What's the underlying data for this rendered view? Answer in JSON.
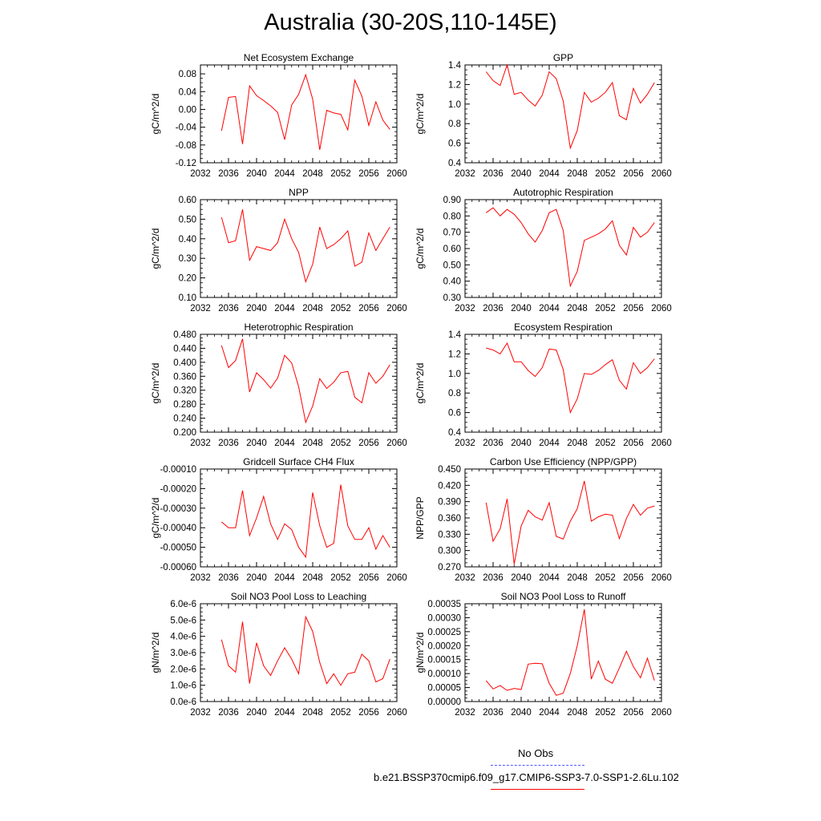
{
  "title": "Australia (30-20S,110-145E)",
  "legend": {
    "entries": [
      {
        "label": "No Obs",
        "color": "#0000ff",
        "style": "dashed"
      },
      {
        "label": "b.e21.BSSP370cmip6.f09_g17.CMIP6-SSP3-7.0-SSP1-2.6Lu.102",
        "color": "#ff0000",
        "style": "solid"
      }
    ]
  },
  "x_axis": {
    "ticks": [
      2032,
      2036,
      2040,
      2044,
      2048,
      2052,
      2056,
      2060
    ],
    "tick_labels": [
      "2032",
      "2036",
      "2040",
      "2044",
      "2048",
      "2052",
      "2056",
      "2060"
    ],
    "xlim": [
      2032,
      2060
    ],
    "years": [
      2035,
      2036,
      2037,
      2038,
      2039,
      2040,
      2041,
      2042,
      2043,
      2044,
      2045,
      2046,
      2047,
      2048,
      2049,
      2050,
      2051,
      2052,
      2053,
      2054,
      2055,
      2056,
      2057,
      2058,
      2059
    ]
  },
  "chart_data": [
    {
      "type": "line",
      "title": "Net Ecosystem Exchange",
      "ylabel": "gC/m^2/d",
      "ylim": [
        -0.12,
        0.1
      ],
      "yticks": [
        -0.12,
        -0.08,
        -0.04,
        0.0,
        0.04,
        0.08
      ],
      "ytick_labels": [
        "-0.12",
        "-0.08",
        "-0.04",
        "0.00",
        "0.04",
        "0.08"
      ],
      "series": [
        {
          "color": "#ff0000",
          "values": [
            -0.048,
            0.027,
            0.029,
            -0.078,
            0.053,
            0.031,
            0.02,
            0.008,
            -0.007,
            -0.068,
            0.01,
            0.034,
            0.078,
            0.023,
            -0.091,
            -0.002,
            -0.008,
            -0.011,
            -0.046,
            0.066,
            0.03,
            -0.036,
            0.017,
            -0.024,
            -0.045
          ]
        }
      ]
    },
    {
      "type": "line",
      "title": "GPP",
      "ylabel": "gC/m^2/d",
      "ylim": [
        0.4,
        1.4
      ],
      "yticks": [
        0.4,
        0.6,
        0.8,
        1.0,
        1.2,
        1.4
      ],
      "ytick_labels": [
        "0.4",
        "0.6",
        "0.8",
        "1.0",
        "1.2",
        "1.4"
      ],
      "series": [
        {
          "color": "#ff0000",
          "values": [
            1.33,
            1.24,
            1.19,
            1.4,
            1.1,
            1.12,
            1.04,
            0.98,
            1.09,
            1.33,
            1.26,
            1.03,
            0.55,
            0.73,
            1.12,
            1.02,
            1.06,
            1.12,
            1.22,
            0.88,
            0.84,
            1.16,
            1.01,
            1.1,
            1.22
          ]
        }
      ]
    },
    {
      "type": "line",
      "title": "NPP",
      "ylabel": "gC/m^2/d",
      "ylim": [
        0.1,
        0.6
      ],
      "yticks": [
        0.1,
        0.2,
        0.3,
        0.4,
        0.5,
        0.6
      ],
      "ytick_labels": [
        "0.10",
        "0.20",
        "0.30",
        "0.40",
        "0.50",
        "0.60"
      ],
      "series": [
        {
          "color": "#ff0000",
          "values": [
            0.51,
            0.38,
            0.39,
            0.55,
            0.29,
            0.36,
            0.35,
            0.34,
            0.38,
            0.5,
            0.4,
            0.33,
            0.18,
            0.27,
            0.46,
            0.35,
            0.37,
            0.4,
            0.44,
            0.26,
            0.28,
            0.43,
            0.34,
            0.4,
            0.46
          ]
        }
      ]
    },
    {
      "type": "line",
      "title": "Autotrophic Respiration",
      "ylabel": "gC/m^2/d",
      "ylim": [
        0.3,
        0.9
      ],
      "yticks": [
        0.3,
        0.4,
        0.5,
        0.6,
        0.7,
        0.8,
        0.9
      ],
      "ytick_labels": [
        "0.30",
        "0.40",
        "0.50",
        "0.60",
        "0.70",
        "0.80",
        "0.90"
      ],
      "series": [
        {
          "color": "#ff0000",
          "values": [
            0.82,
            0.85,
            0.8,
            0.84,
            0.81,
            0.76,
            0.69,
            0.64,
            0.71,
            0.82,
            0.84,
            0.71,
            0.37,
            0.46,
            0.65,
            0.67,
            0.69,
            0.72,
            0.77,
            0.62,
            0.56,
            0.73,
            0.67,
            0.7,
            0.76
          ]
        }
      ]
    },
    {
      "type": "line",
      "title": "Heterotrophic Respiration",
      "ylabel": "gC/m^2/d",
      "ylim": [
        0.2,
        0.48
      ],
      "yticks": [
        0.2,
        0.24,
        0.28,
        0.32,
        0.36,
        0.4,
        0.44,
        0.48
      ],
      "ytick_labels": [
        "0.200",
        "0.240",
        "0.280",
        "0.320",
        "0.360",
        "0.400",
        "0.440",
        "0.480"
      ],
      "series": [
        {
          "color": "#ff0000",
          "values": [
            0.448,
            0.385,
            0.405,
            0.467,
            0.315,
            0.37,
            0.35,
            0.326,
            0.355,
            0.42,
            0.398,
            0.33,
            0.228,
            0.275,
            0.353,
            0.325,
            0.343,
            0.37,
            0.374,
            0.3,
            0.284,
            0.37,
            0.34,
            0.36,
            0.393
          ]
        }
      ]
    },
    {
      "type": "line",
      "title": "Ecosystem Respiration",
      "ylabel": "gC/m^2/d",
      "ylim": [
        0.4,
        1.4
      ],
      "yticks": [
        0.4,
        0.6,
        0.8,
        1.0,
        1.2,
        1.4
      ],
      "ytick_labels": [
        "0.4",
        "0.6",
        "0.8",
        "1.0",
        "1.2",
        "1.4"
      ],
      "series": [
        {
          "color": "#ff0000",
          "values": [
            1.26,
            1.24,
            1.2,
            1.31,
            1.12,
            1.12,
            1.03,
            0.97,
            1.06,
            1.25,
            1.24,
            1.04,
            0.6,
            0.74,
            1.0,
            0.99,
            1.03,
            1.09,
            1.14,
            0.93,
            0.84,
            1.11,
            1.0,
            1.06,
            1.15
          ]
        }
      ]
    },
    {
      "type": "line",
      "title": "Gridcell Surface CH4 Flux",
      "ylabel": "gC/m^2/d",
      "ylim": [
        -0.0006,
        -0.0001
      ],
      "yticks": [
        -0.0006,
        -0.0005,
        -0.0004,
        -0.0003,
        -0.0002,
        -0.0001
      ],
      "ytick_labels": [
        "-0.00060",
        "-0.00050",
        "-0.00040",
        "-0.00030",
        "-0.00020",
        "-0.00010"
      ],
      "series": [
        {
          "color": "#ff0000",
          "values": [
            -0.00037,
            -0.0004,
            -0.0004,
            -0.00021,
            -0.00044,
            -0.00035,
            -0.00024,
            -0.00038,
            -0.00046,
            -0.00038,
            -0.00041,
            -0.0005,
            -0.00055,
            -0.00022,
            -0.00039,
            -0.0005,
            -0.00048,
            -0.00018,
            -0.00039,
            -0.00046,
            -0.00046,
            -0.0004,
            -0.00051,
            -0.00044,
            -0.0005
          ]
        }
      ]
    },
    {
      "type": "line",
      "title": "Carbon Use Efficiency (NPP/GPP)",
      "ylabel": "NPP/GPP",
      "ylim": [
        0.27,
        0.45
      ],
      "yticks": [
        0.27,
        0.3,
        0.33,
        0.36,
        0.39,
        0.42,
        0.45
      ],
      "ytick_labels": [
        "0.270",
        "0.300",
        "0.330",
        "0.360",
        "0.390",
        "0.420",
        "0.450"
      ],
      "series": [
        {
          "color": "#ff0000",
          "values": [
            0.388,
            0.317,
            0.34,
            0.395,
            0.275,
            0.345,
            0.374,
            0.362,
            0.356,
            0.388,
            0.326,
            0.321,
            0.354,
            0.377,
            0.428,
            0.354,
            0.362,
            0.367,
            0.365,
            0.322,
            0.359,
            0.385,
            0.365,
            0.378,
            0.382
          ]
        }
      ]
    },
    {
      "type": "line",
      "title": "Soil NO3 Pool Loss to Leaching",
      "ylabel": "gN/m^2/d",
      "ylim": [
        0,
        6e-06
      ],
      "yticks": [
        0,
        1e-06,
        2e-06,
        3e-06,
        4e-06,
        5e-06,
        6e-06
      ],
      "ytick_labels": [
        "0.0e-6",
        "1.0e-6",
        "2.0e-6",
        "3.0e-6",
        "4.0e-6",
        "5.0e-6",
        "6.0e-6"
      ],
      "series": [
        {
          "color": "#ff0000",
          "values": [
            3.8e-06,
            2.2e-06,
            1.8e-06,
            4.9e-06,
            1.1e-06,
            3.6e-06,
            2.2e-06,
            1.6e-06,
            2.5e-06,
            3.3e-06,
            2.6e-06,
            1.7e-06,
            5.2e-06,
            4.3e-06,
            2.4e-06,
            1.1e-06,
            1.7e-06,
            1e-06,
            1.7e-06,
            1.8e-06,
            2.9e-06,
            2.5e-06,
            1.2e-06,
            1.4e-06,
            2.6e-06
          ]
        }
      ]
    },
    {
      "type": "line",
      "title": "Soil NO3 Pool Loss to Runoff",
      "ylabel": "gN/m^2/d",
      "ylim": [
        0,
        0.00035
      ],
      "yticks": [
        0,
        5e-05,
        0.0001,
        0.00015,
        0.0002,
        0.00025,
        0.0003,
        0.00035
      ],
      "ytick_labels": [
        "0.00000",
        "0.00005",
        "0.00010",
        "0.00015",
        "0.00020",
        "0.00025",
        "0.00030",
        "0.00035"
      ],
      "series": [
        {
          "color": "#ff0000",
          "values": [
            7.5e-05,
            4.5e-05,
            5.7e-05,
            4e-05,
            4.7e-05,
            4.3e-05,
            0.000134,
            0.000137,
            0.000135,
            6.5e-05,
            2.2e-05,
            3e-05,
            0.0001,
            0.0002,
            0.00033,
            8e-05,
            0.000145,
            8e-05,
            6.5e-05,
            0.00012,
            0.00018,
            0.000125,
            8.5e-05,
            0.000155,
            7.5e-05
          ]
        }
      ]
    }
  ]
}
